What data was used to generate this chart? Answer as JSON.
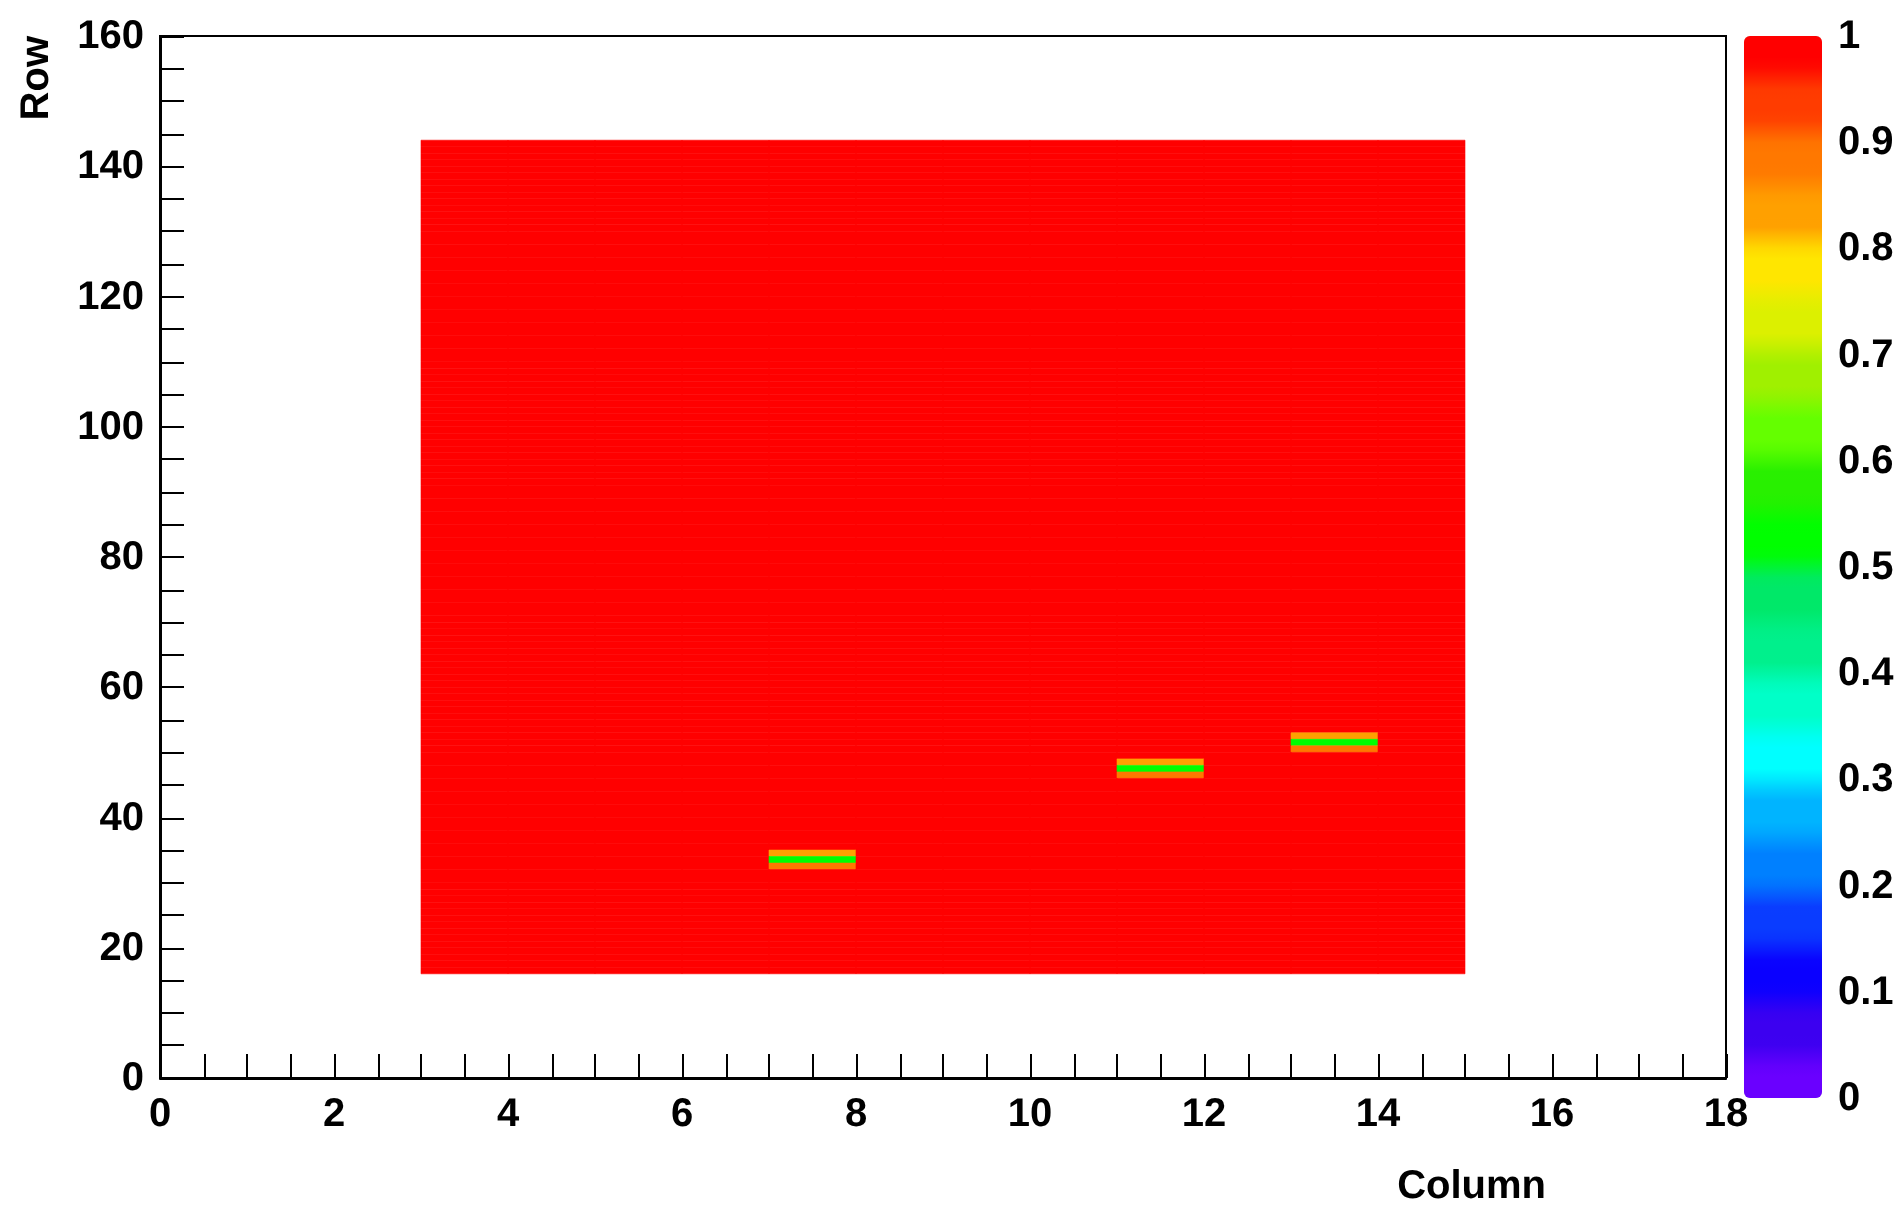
{
  "chart_data": {
    "type": "heatmap",
    "xlabel": "Column",
    "ylabel": "Row",
    "x": [
      3.5,
      4.5,
      5.5,
      6.5,
      7.5,
      8.5,
      9.5,
      10.5,
      11.5,
      12.5,
      13.5,
      14.5
    ],
    "y": [
      143.5,
      142.5,
      141.5,
      140.5,
      139.5,
      138.5,
      137.5,
      136.5,
      135.5,
      134.5,
      133.5,
      132.5,
      131.5,
      130.5,
      129.5,
      128.5,
      127.5,
      126.5,
      125.5,
      124.5,
      123.5,
      122.5,
      121.5,
      120.5,
      119.5,
      118.5,
      117.5,
      116.5,
      115.5,
      114.5,
      113.5,
      112.5,
      111.5,
      110.5,
      109.5,
      108.5,
      107.5,
      106.5,
      105.5,
      104.5,
      103.5,
      102.5,
      101.5,
      100.5,
      99.5,
      98.5,
      97.5,
      96.5,
      95.5,
      94.5,
      93.5,
      92.5,
      91.5,
      90.5,
      89.5,
      88.5,
      87.5,
      86.5,
      85.5,
      84.5,
      83.5,
      82.5,
      81.5,
      80.5,
      79.5,
      78.5,
      77.5,
      76.5,
      75.5,
      74.5,
      73.5,
      72.5,
      71.5,
      70.5,
      69.5,
      68.5,
      67.5,
      66.5,
      65.5,
      64.5,
      63.5,
      62.5,
      61.5,
      60.5,
      59.5,
      58.5,
      57.5,
      56.5,
      55.5,
      54.5,
      53.5,
      52.5,
      51.5,
      50.5,
      49.5,
      48.5,
      47.5,
      46.5,
      45.5,
      44.5,
      43.5,
      42.5,
      41.5,
      40.5,
      39.5,
      38.5,
      37.5,
      36.5,
      35.5,
      34.5,
      33.5,
      32.5,
      31.5,
      30.5,
      29.5,
      28.5,
      27.5,
      26.5,
      25.5,
      24.5,
      23.5,
      22.5,
      21.5,
      20.5,
      19.5,
      18.5,
      17.5,
      16.5
    ],
    "xlim": [
      0,
      18
    ],
    "xticks": [
      0,
      {
        "value": 0.5,
        "label": null
      },
      {
        "value": 1,
        "label": null
      },
      {
        "value": 1.5,
        "label": null
      },
      2,
      {
        "value": 2.5,
        "label": null
      },
      {
        "value": 3,
        "label": null
      },
      {
        "value": 3.5,
        "label": null
      },
      4,
      {
        "value": 4.5,
        "label": null
      },
      {
        "value": 5,
        "label": null
      },
      {
        "value": 5.5,
        "label": null
      },
      6,
      {
        "value": 6.5,
        "label": null
      },
      {
        "value": 7,
        "label": null
      },
      {
        "value": 7.5,
        "label": null
      },
      8,
      {
        "value": 8.5,
        "label": null
      },
      {
        "value": 9,
        "label": null
      },
      {
        "value": 9.5,
        "label": null
      },
      10,
      {
        "value": 10.5,
        "label": null
      },
      {
        "value": 11,
        "label": null
      },
      {
        "value": 11.5,
        "label": null
      },
      12,
      {
        "value": 12.5,
        "label": null
      },
      {
        "value": 13,
        "label": null
      },
      {
        "value": 13.5,
        "label": null
      },
      14,
      {
        "value": 14.5,
        "label": null
      },
      {
        "value": 15,
        "label": null
      },
      {
        "value": 15.5,
        "label": null
      },
      16,
      {
        "value": 16.5,
        "label": null
      },
      {
        "value": 17,
        "label": null
      },
      {
        "value": 17.5,
        "label": null
      },
      18
    ],
    "ylim": [
      0,
      160
    ],
    "yticks": [
      0,
      {
        "value": 5,
        "label": null
      },
      {
        "value": 10,
        "label": null
      },
      {
        "value": 15,
        "label": null
      },
      20,
      {
        "value": 25,
        "label": null
      },
      {
        "value": 30,
        "label": null
      },
      {
        "value": 35,
        "label": null
      },
      40,
      {
        "value": 45,
        "label": null
      },
      {
        "value": 50,
        "label": null
      },
      {
        "value": 55,
        "label": null
      },
      60,
      {
        "value": 65,
        "label": null
      },
      {
        "value": 70,
        "label": null
      },
      {
        "value": 75,
        "label": null
      },
      80,
      {
        "value": 85,
        "label": null
      },
      {
        "value": 90,
        "label": null
      },
      {
        "value": 95,
        "label": null
      },
      100,
      {
        "value": 105,
        "label": null
      },
      {
        "value": 110,
        "label": null
      },
      {
        "value": 115,
        "label": null
      },
      120,
      {
        "value": 125,
        "label": null
      },
      {
        "value": 130,
        "label": null
      },
      {
        "value": 135,
        "label": null
      },
      140,
      {
        "value": 145,
        "label": null
      },
      {
        "value": 150,
        "label": null
      },
      {
        "value": 155,
        "label": null
      },
      160
    ],
    "clim": [
      0,
      1
    ],
    "cticks": [
      0,
      0.1,
      0.2,
      0.3,
      0.4,
      0.5,
      0.6,
      0.7,
      0.8,
      0.9,
      1
    ],
    "cells": [
      [
        1,
        1,
        1,
        1,
        1,
        1,
        1,
        1,
        1,
        1,
        1,
        1
      ],
      [
        1,
        1,
        1,
        1,
        1,
        1,
        1,
        1,
        1,
        1,
        1,
        1
      ],
      [
        1,
        1,
        1,
        1,
        1,
        1,
        1,
        1,
        1,
        1,
        1,
        1
      ],
      [
        1,
        1,
        1,
        1,
        1,
        1,
        1,
        1,
        1,
        1,
        1,
        1
      ],
      [
        1,
        1,
        1,
        1,
        1,
        1,
        1,
        1,
        1,
        1,
        1,
        1
      ],
      [
        1,
        1,
        1,
        1,
        1,
        1,
        1,
        1,
        1,
        1,
        1,
        1
      ],
      [
        1,
        1,
        1,
        1,
        1,
        1,
        1,
        1,
        1,
        1,
        1,
        1
      ],
      [
        1,
        1,
        1,
        1,
        1,
        1,
        1,
        1,
        1,
        1,
        1,
        1
      ],
      [
        1,
        1,
        1,
        1,
        1,
        1,
        1,
        1,
        1,
        1,
        1,
        1
      ],
      [
        1,
        1,
        1,
        1,
        1,
        1,
        1,
        1,
        1,
        1,
        1,
        1
      ],
      [
        1,
        1,
        1,
        1,
        1,
        1,
        1,
        1,
        1,
        1,
        1,
        1
      ],
      [
        1,
        1,
        1,
        1,
        1,
        1,
        1,
        1,
        1,
        1,
        1,
        1
      ],
      [
        1,
        1,
        1,
        1,
        1,
        1,
        1,
        1,
        1,
        1,
        1,
        1
      ],
      [
        1,
        1,
        1,
        1,
        1,
        1,
        1,
        1,
        1,
        1,
        1,
        1
      ],
      [
        1,
        1,
        1,
        1,
        1,
        1,
        1,
        1,
        1,
        1,
        1,
        1
      ],
      [
        1,
        1,
        1,
        1,
        1,
        1,
        1,
        1,
        1,
        1,
        1,
        1
      ],
      [
        1,
        1,
        1,
        1,
        1,
        1,
        1,
        1,
        1,
        1,
        1,
        1
      ],
      [
        1,
        1,
        1,
        1,
        1,
        1,
        1,
        1,
        1,
        1,
        1,
        1
      ],
      [
        1,
        1,
        1,
        1,
        1,
        1,
        1,
        1,
        1,
        1,
        1,
        1
      ],
      [
        1,
        1,
        1,
        1,
        1,
        1,
        1,
        1,
        1,
        1,
        1,
        1
      ],
      [
        1,
        1,
        1,
        1,
        1,
        1,
        1,
        1,
        1,
        1,
        1,
        1
      ],
      [
        1,
        1,
        1,
        1,
        1,
        1,
        1,
        1,
        1,
        1,
        1,
        1
      ],
      [
        1,
        1,
        1,
        1,
        1,
        1,
        1,
        1,
        1,
        1,
        1,
        1
      ],
      [
        1,
        1,
        1,
        1,
        1,
        1,
        1,
        1,
        1,
        1,
        1,
        1
      ],
      [
        1,
        1,
        1,
        1,
        1,
        1,
        1,
        1,
        1,
        1,
        1,
        1
      ],
      [
        1,
        1,
        1,
        1,
        1,
        1,
        1,
        1,
        1,
        1,
        1,
        1
      ],
      [
        1,
        1,
        1,
        1,
        1,
        1,
        1,
        1,
        1,
        1,
        1,
        1
      ],
      [
        1,
        1,
        1,
        1,
        1,
        1,
        1,
        1,
        1,
        1,
        1,
        1
      ],
      [
        1,
        1,
        1,
        1,
        1,
        1,
        1,
        1,
        1,
        1,
        1,
        1
      ],
      [
        1,
        1,
        1,
        1,
        1,
        1,
        1,
        1,
        1,
        1,
        1,
        1
      ],
      [
        1,
        1,
        1,
        1,
        1,
        1,
        1,
        1,
        1,
        1,
        1,
        1
      ],
      [
        1,
        1,
        1,
        1,
        1,
        1,
        1,
        1,
        1,
        1,
        1,
        1
      ],
      [
        1,
        1,
        1,
        1,
        1,
        1,
        1,
        1,
        1,
        1,
        1,
        1
      ],
      [
        1,
        1,
        1,
        1,
        1,
        1,
        1,
        1,
        1,
        1,
        1,
        1
      ],
      [
        1,
        1,
        1,
        1,
        1,
        1,
        1,
        1,
        1,
        1,
        1,
        1
      ],
      [
        1,
        1,
        1,
        1,
        1,
        1,
        1,
        1,
        1,
        1,
        1,
        1
      ],
      [
        1,
        1,
        1,
        1,
        1,
        1,
        1,
        1,
        1,
        1,
        1,
        1
      ],
      [
        1,
        1,
        1,
        1,
        1,
        1,
        1,
        1,
        1,
        1,
        1,
        1
      ],
      [
        1,
        1,
        1,
        1,
        1,
        1,
        1,
        1,
        1,
        1,
        1,
        1
      ],
      [
        1,
        1,
        1,
        1,
        1,
        1,
        1,
        1,
        1,
        1,
        1,
        1
      ],
      [
        1,
        1,
        1,
        1,
        1,
        1,
        1,
        1,
        1,
        1,
        1,
        1
      ],
      [
        1,
        1,
        1,
        1,
        1,
        1,
        1,
        1,
        1,
        1,
        1,
        1
      ],
      [
        1,
        1,
        1,
        1,
        1,
        1,
        1,
        1,
        1,
        1,
        1,
        1
      ],
      [
        1,
        1,
        1,
        1,
        1,
        1,
        1,
        1,
        1,
        1,
        1,
        1
      ],
      [
        1,
        1,
        1,
        1,
        1,
        1,
        1,
        1,
        1,
        1,
        1,
        1
      ],
      [
        1,
        1,
        1,
        1,
        1,
        1,
        1,
        1,
        1,
        1,
        1,
        1
      ],
      [
        1,
        1,
        1,
        1,
        1,
        1,
        1,
        1,
        1,
        1,
        1,
        1
      ],
      [
        1,
        1,
        1,
        1,
        1,
        1,
        1,
        1,
        1,
        1,
        1,
        1
      ],
      [
        1,
        1,
        1,
        1,
        1,
        1,
        1,
        1,
        1,
        1,
        1,
        1
      ],
      [
        1,
        1,
        1,
        1,
        1,
        1,
        1,
        1,
        1,
        1,
        1,
        1
      ],
      [
        1,
        1,
        1,
        1,
        1,
        1,
        1,
        1,
        1,
        1,
        1,
        1
      ],
      [
        1,
        1,
        1,
        1,
        1,
        1,
        1,
        1,
        1,
        1,
        1,
        1
      ],
      [
        1,
        1,
        1,
        1,
        1,
        1,
        1,
        1,
        1,
        1,
        1,
        1
      ],
      [
        1,
        1,
        1,
        1,
        1,
        1,
        1,
        1,
        1,
        1,
        1,
        1
      ],
      [
        1,
        1,
        1,
        1,
        1,
        1,
        1,
        1,
        1,
        1,
        1,
        1
      ],
      [
        1,
        1,
        1,
        1,
        1,
        1,
        1,
        1,
        1,
        1,
        1,
        1
      ],
      [
        1,
        1,
        1,
        1,
        1,
        1,
        1,
        1,
        1,
        1,
        1,
        1
      ],
      [
        1,
        1,
        1,
        1,
        1,
        1,
        1,
        1,
        1,
        1,
        1,
        1
      ],
      [
        1,
        1,
        1,
        1,
        1,
        1,
        1,
        1,
        1,
        1,
        1,
        1
      ],
      [
        1,
        1,
        1,
        1,
        1,
        1,
        1,
        1,
        1,
        1,
        1,
        1
      ],
      [
        1,
        1,
        1,
        1,
        1,
        1,
        1,
        1,
        1,
        1,
        1,
        1
      ],
      [
        1,
        1,
        1,
        1,
        1,
        1,
        1,
        1,
        1,
        1,
        1,
        1
      ],
      [
        1,
        1,
        1,
        1,
        1,
        1,
        1,
        1,
        1,
        1,
        1,
        1
      ],
      [
        1,
        1,
        1,
        1,
        1,
        1,
        1,
        1,
        1,
        1,
        1,
        1
      ],
      [
        1,
        1,
        1,
        1,
        1,
        1,
        1,
        1,
        1,
        1,
        1,
        1
      ],
      [
        1,
        1,
        1,
        1,
        1,
        1,
        1,
        1,
        1,
        1,
        1,
        1
      ],
      [
        1,
        1,
        1,
        1,
        1,
        1,
        1,
        1,
        1,
        1,
        1,
        1
      ],
      [
        1,
        1,
        1,
        1,
        1,
        1,
        1,
        1,
        1,
        1,
        1,
        1
      ],
      [
        1,
        1,
        1,
        1,
        1,
        1,
        1,
        1,
        1,
        1,
        1,
        1
      ],
      [
        1,
        1,
        1,
        1,
        1,
        1,
        1,
        1,
        1,
        1,
        1,
        1
      ],
      [
        1,
        1,
        1,
        1,
        1,
        1,
        1,
        1,
        1,
        1,
        1,
        1
      ],
      [
        1,
        1,
        1,
        1,
        1,
        1,
        1,
        1,
        1,
        1,
        1,
        1
      ],
      [
        1,
        1,
        1,
        1,
        1,
        1,
        1,
        1,
        1,
        1,
        1,
        1
      ],
      [
        1,
        1,
        1,
        1,
        1,
        1,
        1,
        1,
        1,
        1,
        1,
        1
      ],
      [
        1,
        1,
        1,
        1,
        1,
        1,
        1,
        1,
        1,
        1,
        1,
        1
      ],
      [
        1,
        1,
        1,
        1,
        1,
        1,
        1,
        1,
        1,
        1,
        1,
        1
      ],
      [
        1,
        1,
        1,
        1,
        1,
        1,
        1,
        1,
        1,
        1,
        1,
        1
      ],
      [
        1,
        1,
        1,
        1,
        1,
        1,
        1,
        1,
        1,
        1,
        1,
        1
      ],
      [
        1,
        1,
        1,
        1,
        1,
        1,
        1,
        1,
        1,
        1,
        1,
        1
      ],
      [
        1,
        1,
        1,
        1,
        1,
        1,
        1,
        1,
        1,
        1,
        1,
        1
      ],
      [
        1,
        1,
        1,
        1,
        1,
        1,
        1,
        1,
        1,
        1,
        1,
        1
      ],
      [
        1,
        1,
        1,
        1,
        1,
        1,
        1,
        1,
        1,
        1,
        1,
        1
      ],
      [
        1,
        1,
        1,
        1,
        1,
        1,
        1,
        1,
        1,
        1,
        1,
        1
      ],
      [
        1,
        1,
        1,
        1,
        1,
        1,
        1,
        1,
        1,
        1,
        1,
        1
      ],
      [
        1,
        1,
        1,
        1,
        1,
        1,
        1,
        1,
        1,
        1,
        1,
        1
      ],
      [
        1,
        1,
        1,
        1,
        1,
        1,
        1,
        1,
        1,
        1,
        1,
        1
      ],
      [
        1,
        1,
        1,
        1,
        1,
        1,
        1,
        1,
        1,
        1,
        1,
        1
      ],
      [
        1,
        1,
        1,
        1,
        1,
        1,
        1,
        1,
        1,
        1,
        1,
        1
      ],
      [
        1,
        1,
        1,
        1,
        1,
        1,
        1,
        1,
        1,
        1,
        1,
        1
      ],
      [
        1,
        1,
        1,
        1,
        1,
        1,
        1,
        1,
        1,
        1,
        1,
        1
      ],
      [
        1,
        1,
        1,
        1,
        1,
        1,
        1,
        1,
        1,
        1,
        1,
        1
      ],
      [
        1,
        1,
        1,
        1,
        1,
        1,
        1,
        1,
        1,
        1,
        0.82,
        1
      ],
      [
        1,
        1,
        1,
        1,
        1,
        1,
        1,
        1,
        1,
        1,
        0.52,
        1
      ],
      [
        1,
        1,
        1,
        1,
        1,
        1,
        1,
        1,
        1,
        1,
        0.87,
        1
      ],
      [
        1,
        1,
        1,
        1,
        1,
        1,
        1,
        1,
        1,
        1,
        1,
        1
      ],
      [
        1,
        1,
        1,
        1,
        1,
        1,
        1,
        1,
        0.82,
        1,
        1,
        1
      ],
      [
        1,
        1,
        1,
        1,
        1,
        1,
        1,
        1,
        0.52,
        1,
        1,
        1
      ],
      [
        1,
        1,
        1,
        1,
        1,
        1,
        1,
        1,
        0.87,
        1,
        1,
        1
      ],
      [
        1,
        1,
        1,
        1,
        1,
        1,
        1,
        1,
        1,
        1,
        1,
        1
      ],
      [
        1,
        1,
        1,
        1,
        1,
        1,
        1,
        1,
        1,
        1,
        1,
        1
      ],
      [
        1,
        1,
        1,
        1,
        1,
        1,
        1,
        1,
        1,
        1,
        1,
        1
      ],
      [
        1,
        1,
        1,
        1,
        1,
        1,
        1,
        1,
        1,
        1,
        1,
        1
      ],
      [
        1,
        1,
        1,
        1,
        1,
        1,
        1,
        1,
        1,
        1,
        1,
        1
      ],
      [
        1,
        1,
        1,
        1,
        1,
        1,
        1,
        1,
        1,
        1,
        1,
        1
      ],
      [
        1,
        1,
        1,
        1,
        1,
        1,
        1,
        1,
        1,
        1,
        1,
        1
      ],
      [
        1,
        1,
        1,
        1,
        1,
        1,
        1,
        1,
        1,
        1,
        1,
        1
      ],
      [
        1,
        1,
        1,
        1,
        1,
        1,
        1,
        1,
        1,
        1,
        1,
        1
      ],
      [
        1,
        1,
        1,
        1,
        1,
        1,
        1,
        1,
        1,
        1,
        1,
        1
      ],
      [
        1,
        1,
        1,
        1,
        1,
        1,
        1,
        1,
        1,
        1,
        1,
        1
      ],
      [
        1,
        1,
        1,
        1,
        0.82,
        1,
        1,
        1,
        1,
        1,
        1,
        1
      ],
      [
        1,
        1,
        1,
        1,
        0.52,
        1,
        1,
        1,
        1,
        1,
        1,
        1
      ],
      [
        1,
        1,
        1,
        1,
        0.87,
        1,
        1,
        1,
        1,
        1,
        1,
        1
      ],
      [
        1,
        1,
        1,
        1,
        1,
        1,
        1,
        1,
        1,
        1,
        1,
        1
      ],
      [
        1,
        1,
        1,
        1,
        1,
        1,
        1,
        1,
        1,
        1,
        1,
        1
      ],
      [
        1,
        1,
        1,
        1,
        1,
        1,
        1,
        1,
        1,
        1,
        1,
        1
      ],
      [
        1,
        1,
        1,
        1,
        1,
        1,
        1,
        1,
        1,
        1,
        1,
        1
      ],
      [
        1,
        1,
        1,
        1,
        1,
        1,
        1,
        1,
        1,
        1,
        1,
        1
      ],
      [
        1,
        1,
        1,
        1,
        1,
        1,
        1,
        1,
        1,
        1,
        1,
        1
      ],
      [
        1,
        1,
        1,
        1,
        1,
        1,
        1,
        1,
        1,
        1,
        1,
        1
      ],
      [
        1,
        1,
        1,
        1,
        1,
        1,
        1,
        1,
        1,
        1,
        1,
        1
      ],
      [
        1,
        1,
        1,
        1,
        1,
        1,
        1,
        1,
        1,
        1,
        1,
        1
      ],
      [
        1,
        1,
        1,
        1,
        1,
        1,
        1,
        1,
        1,
        1,
        1,
        1
      ],
      [
        1,
        1,
        1,
        1,
        1,
        1,
        1,
        1,
        1,
        1,
        1,
        1
      ],
      [
        1,
        1,
        1,
        1,
        1,
        1,
        1,
        1,
        1,
        1,
        1,
        1
      ],
      [
        1,
        1,
        1,
        1,
        1,
        1,
        1,
        1,
        1,
        1,
        1,
        1
      ],
      [
        1,
        1,
        1,
        1,
        1,
        1,
        1,
        1,
        1,
        1,
        1,
        1
      ],
      [
        1,
        1,
        1,
        1,
        1,
        1,
        1,
        1,
        1,
        1,
        1,
        1
      ],
      [
        1,
        1,
        1,
        1,
        1,
        1,
        1,
        1,
        1,
        1,
        1,
        1
      ]
    ]
  }
}
